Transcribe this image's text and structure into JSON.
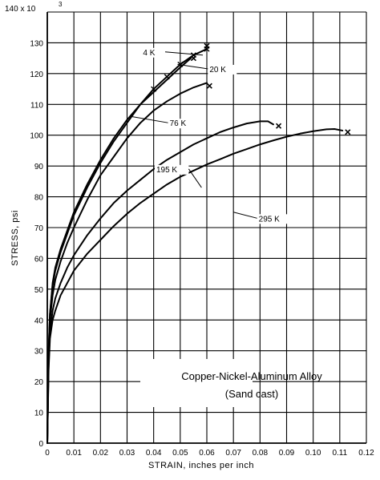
{
  "chart_data": {
    "type": "line",
    "title": "",
    "xlabel": "STRAIN, inches per inch",
    "ylabel": "STRESS, psi",
    "y_multiplier_label": "140 x 10",
    "y_multiplier_exp": "3",
    "xlim": [
      0,
      0.12
    ],
    "ylim": [
      0,
      140
    ],
    "grid": true,
    "x_ticks": [
      0,
      0.01,
      0.02,
      0.03,
      0.04,
      0.05,
      0.06,
      0.07,
      0.08,
      0.09,
      0.1,
      0.11,
      0.12
    ],
    "x_tick_labels": [
      "0",
      "0.01",
      "0.02",
      "0.03",
      "0.04",
      "0.05",
      "0.06",
      "0.07",
      "0.08",
      "0.09",
      "0.10",
      "0.11",
      "0.12"
    ],
    "y_ticks": [
      0,
      10,
      20,
      30,
      40,
      50,
      60,
      70,
      80,
      90,
      100,
      110,
      120,
      130
    ],
    "y_tick_labels": [
      "0",
      "10",
      "20",
      "30",
      "40",
      "50",
      "60",
      "70",
      "80",
      "90",
      "100",
      "110",
      "120",
      "130"
    ],
    "annotation_box": [
      "Copper-Nickel-Aluminum Alloy",
      "(Sand cast)"
    ],
    "series": [
      {
        "name": "4 K",
        "points": [
          [
            0,
            0
          ],
          [
            0.0005,
            30
          ],
          [
            0.001,
            42
          ],
          [
            0.002,
            52
          ],
          [
            0.003,
            57
          ],
          [
            0.005,
            63
          ],
          [
            0.0075,
            69
          ],
          [
            0.01,
            75
          ],
          [
            0.015,
            84
          ],
          [
            0.02,
            92
          ],
          [
            0.025,
            99
          ],
          [
            0.03,
            105
          ],
          [
            0.035,
            110
          ],
          [
            0.04,
            115
          ],
          [
            0.045,
            119
          ],
          [
            0.05,
            123
          ],
          [
            0.055,
            126
          ],
          [
            0.06,
            128
          ]
        ],
        "fracture": [
          0.06,
          129
        ]
      },
      {
        "name": "20 K",
        "points": [
          [
            0,
            0
          ],
          [
            0.0005,
            30
          ],
          [
            0.001,
            42
          ],
          [
            0.002,
            51
          ],
          [
            0.003,
            56
          ],
          [
            0.005,
            62
          ],
          [
            0.0075,
            68
          ],
          [
            0.01,
            74
          ],
          [
            0.015,
            83
          ],
          [
            0.02,
            91
          ],
          [
            0.025,
            98
          ],
          [
            0.03,
            104
          ],
          [
            0.035,
            110
          ],
          [
            0.04,
            114
          ],
          [
            0.045,
            118
          ],
          [
            0.05,
            122
          ],
          [
            0.054,
            125
          ]
        ],
        "fracture": [
          0.055,
          125
        ]
      },
      {
        "name": "76 K",
        "points": [
          [
            0,
            0
          ],
          [
            0.0005,
            28
          ],
          [
            0.001,
            40
          ],
          [
            0.002,
            48
          ],
          [
            0.003,
            53
          ],
          [
            0.005,
            59
          ],
          [
            0.0075,
            65
          ],
          [
            0.01,
            70
          ],
          [
            0.015,
            79
          ],
          [
            0.02,
            87
          ],
          [
            0.025,
            93
          ],
          [
            0.03,
            99
          ],
          [
            0.035,
            104
          ],
          [
            0.04,
            108
          ],
          [
            0.045,
            111
          ],
          [
            0.05,
            113.5
          ],
          [
            0.055,
            115.5
          ],
          [
            0.06,
            117
          ]
        ],
        "fracture": [
          0.061,
          116
        ]
      },
      {
        "name": "195 K",
        "points": [
          [
            0,
            0
          ],
          [
            0.0005,
            26
          ],
          [
            0.001,
            36
          ],
          [
            0.002,
            43
          ],
          [
            0.003,
            47
          ],
          [
            0.005,
            52
          ],
          [
            0.0075,
            57
          ],
          [
            0.01,
            61
          ],
          [
            0.015,
            67.5
          ],
          [
            0.02,
            73
          ],
          [
            0.025,
            78
          ],
          [
            0.03,
            82
          ],
          [
            0.035,
            85.5
          ],
          [
            0.04,
            89
          ],
          [
            0.045,
            92
          ],
          [
            0.05,
            94.5
          ],
          [
            0.055,
            97
          ],
          [
            0.06,
            99
          ],
          [
            0.065,
            101
          ],
          [
            0.07,
            102.5
          ],
          [
            0.075,
            103.8
          ],
          [
            0.08,
            104.5
          ],
          [
            0.083,
            104.5
          ],
          [
            0.085,
            103.5
          ]
        ],
        "fracture": [
          0.087,
          103
        ]
      },
      {
        "name": "295 K",
        "points": [
          [
            0,
            0
          ],
          [
            0.0005,
            24
          ],
          [
            0.001,
            34
          ],
          [
            0.002,
            40
          ],
          [
            0.003,
            43
          ],
          [
            0.005,
            48
          ],
          [
            0.0075,
            52
          ],
          [
            0.01,
            56
          ],
          [
            0.015,
            61.5
          ],
          [
            0.02,
            66
          ],
          [
            0.025,
            70.5
          ],
          [
            0.03,
            74.5
          ],
          [
            0.035,
            78
          ],
          [
            0.04,
            81
          ],
          [
            0.045,
            84
          ],
          [
            0.05,
            86.5
          ],
          [
            0.055,
            88.5
          ],
          [
            0.06,
            90.5
          ],
          [
            0.065,
            92.2
          ],
          [
            0.07,
            94
          ],
          [
            0.075,
            95.5
          ],
          [
            0.08,
            97
          ],
          [
            0.085,
            98.3
          ],
          [
            0.09,
            99.5
          ],
          [
            0.095,
            100.5
          ],
          [
            0.1,
            101.3
          ],
          [
            0.105,
            101.9
          ],
          [
            0.108,
            102
          ],
          [
            0.111,
            101.5
          ]
        ],
        "fracture": [
          0.113,
          101
        ]
      }
    ],
    "series_labels": [
      {
        "text": "4  K",
        "at": [
          0.036,
          126
        ],
        "leader_to": [
          0.0585,
          126
        ]
      },
      {
        "text": "20  K",
        "at": [
          0.061,
          120.5
        ],
        "leader_to": [
          0.049,
          123
        ]
      },
      {
        "text": "76  K",
        "at": [
          0.046,
          103
        ],
        "leader_to": [
          0.032,
          106
        ]
      },
      {
        "text": "195  K",
        "at": [
          0.041,
          88
        ],
        "leader_to": [
          0.058,
          83
        ]
      },
      {
        "text": "295  K",
        "at": [
          0.0795,
          72
        ],
        "leader_to": [
          0.07,
          75
        ]
      }
    ]
  }
}
